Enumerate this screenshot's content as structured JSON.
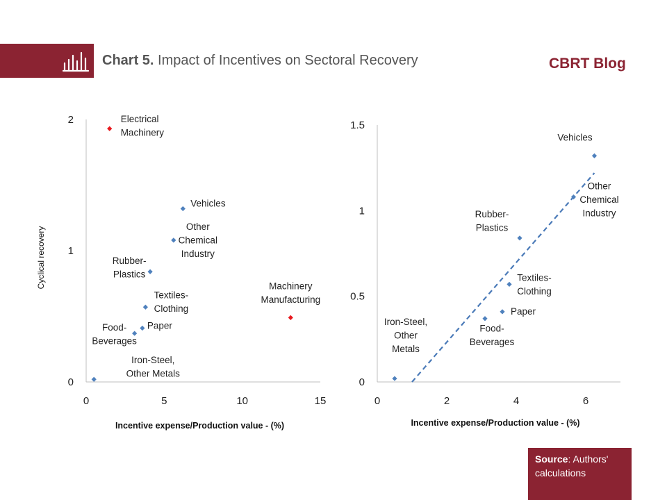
{
  "header": {
    "title_bold": "Chart 5.",
    "title_rest": " Impact of Incentives on Sectoral Recovery",
    "brand": "CBRT Blog",
    "logo_icon": "bar-chart-icon",
    "accent_color": "#8b2332"
  },
  "source": {
    "label": "Source",
    "text": ": Authors' calculations"
  },
  "chart_data": [
    {
      "type": "scatter",
      "xlabel": "Incentive expense/Production value - (%)",
      "ylabel": "Cyclical recovery",
      "xlim": [
        0,
        15
      ],
      "ylim": [
        0,
        2
      ],
      "xticks": [
        "0",
        "5",
        "10",
        "15"
      ],
      "yticks": [
        "0",
        "1",
        "2"
      ],
      "points": [
        {
          "label": [
            "Electrical",
            "Machinery"
          ],
          "x": 1.5,
          "y": 1.93,
          "color": "#e8191e"
        },
        {
          "label": [
            "Vehicles"
          ],
          "x": 6.2,
          "y": 1.32,
          "color": "#4f81bd"
        },
        {
          "label": [
            "Other",
            "Chemical",
            "Industry"
          ],
          "x": 5.6,
          "y": 1.08,
          "color": "#4f81bd"
        },
        {
          "label": [
            "Rubber-",
            "Plastics"
          ],
          "x": 4.1,
          "y": 0.84,
          "color": "#4f81bd"
        },
        {
          "label": [
            "Textiles-",
            "Clothing"
          ],
          "x": 3.8,
          "y": 0.57,
          "color": "#4f81bd"
        },
        {
          "label": [
            "Paper"
          ],
          "x": 3.6,
          "y": 0.41,
          "color": "#4f81bd"
        },
        {
          "label": [
            "Food-",
            "Beverages"
          ],
          "x": 3.1,
          "y": 0.37,
          "color": "#4f81bd"
        },
        {
          "label": [
            "Iron-Steel,",
            "Other Metals"
          ],
          "x": 0.5,
          "y": 0.02,
          "color": "#4f81bd"
        },
        {
          "label": [
            "Machinery",
            "Manufacturing"
          ],
          "x": 13.1,
          "y": 0.49,
          "color": "#e8191e"
        }
      ]
    },
    {
      "type": "scatter",
      "xlabel": "Incentive expense/Production value - (%)",
      "ylabel": "",
      "xlim": [
        0,
        7
      ],
      "ylim": [
        0,
        1.5
      ],
      "xticks": [
        "0",
        "2",
        "4",
        "6"
      ],
      "yticks": [
        "0",
        "0.5",
        "1",
        "1.5"
      ],
      "trendline": {
        "style": "dashed",
        "from": [
          1.0,
          0.0
        ],
        "to": [
          6.25,
          1.22
        ]
      },
      "points": [
        {
          "label": [
            "Vehicles"
          ],
          "x": 6.25,
          "y": 1.32,
          "color": "#4f81bd"
        },
        {
          "label": [
            "Other",
            "Chemical",
            "Industry"
          ],
          "x": 5.65,
          "y": 1.08,
          "color": "#4f81bd"
        },
        {
          "label": [
            "Rubber-",
            "Plastics"
          ],
          "x": 4.1,
          "y": 0.84,
          "color": "#4f81bd"
        },
        {
          "label": [
            "Textiles-",
            "Clothing"
          ],
          "x": 3.8,
          "y": 0.57,
          "color": "#4f81bd"
        },
        {
          "label": [
            "Paper"
          ],
          "x": 3.6,
          "y": 0.41,
          "color": "#4f81bd"
        },
        {
          "label": [
            "Food-",
            "Beverages"
          ],
          "x": 3.1,
          "y": 0.37,
          "color": "#4f81bd"
        },
        {
          "label": [
            "Iron-Steel,",
            "Other",
            "Metals"
          ],
          "x": 0.5,
          "y": 0.02,
          "color": "#4f81bd"
        }
      ]
    }
  ]
}
